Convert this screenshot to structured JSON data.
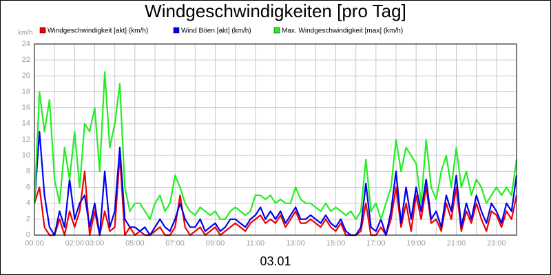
{
  "chart_data": {
    "type": "line",
    "title": "Windgeschwindigkeiten [pro Tag]",
    "y_label": "km/h",
    "x_label": "03.01",
    "x": [
      0,
      0.25,
      0.5,
      0.75,
      1,
      1.25,
      1.5,
      1.75,
      2,
      2.25,
      2.5,
      2.75,
      3,
      3.25,
      3.5,
      3.75,
      4,
      4.25,
      4.5,
      4.75,
      5,
      5.25,
      5.5,
      5.75,
      6,
      6.25,
      6.5,
      6.75,
      7,
      7.25,
      7.5,
      7.75,
      8,
      8.25,
      8.5,
      8.75,
      9,
      9.25,
      9.5,
      9.75,
      10,
      10.25,
      10.5,
      10.75,
      11,
      11.25,
      11.5,
      11.75,
      12,
      12.25,
      12.5,
      12.75,
      13,
      13.25,
      13.5,
      13.75,
      14,
      14.25,
      14.5,
      14.75,
      15,
      15.25,
      15.5,
      15.75,
      16,
      16.25,
      16.5,
      16.75,
      17,
      17.25,
      17.5,
      17.75,
      18,
      18.25,
      18.5,
      18.75,
      19,
      19.25,
      19.5,
      19.75,
      20,
      20.25,
      20.5,
      20.75,
      21,
      21.25,
      21.5,
      21.75,
      22,
      22.25,
      22.5,
      22.75,
      23,
      23.25,
      23.5,
      23.75,
      24
    ],
    "series": [
      {
        "name": "Windgeschwindigkeit [akt] (km/h)",
        "color": "#ee0000",
        "values": [
          4,
          6,
          1,
          0,
          0,
          2,
          0,
          3,
          1,
          3,
          8,
          0,
          3,
          0,
          3,
          0.5,
          1,
          10,
          0,
          1,
          0,
          0.5,
          0,
          0,
          0.5,
          1,
          0,
          0,
          1,
          5,
          1,
          0,
          0.5,
          1,
          0,
          0.5,
          1,
          0,
          0.5,
          1,
          1.5,
          1,
          0.5,
          1.5,
          2,
          2.5,
          1.5,
          2,
          1.5,
          2.5,
          1,
          2,
          3,
          1.5,
          1.5,
          2,
          1.5,
          1,
          2,
          1,
          0.5,
          1.5,
          0,
          0,
          0,
          0.5,
          4,
          0,
          0,
          1,
          0,
          2,
          6,
          1,
          4,
          0.5,
          5,
          2,
          6,
          1.5,
          2,
          0.5,
          4,
          2,
          6,
          0.5,
          3,
          1.5,
          4,
          2,
          0.5,
          3,
          2.5,
          1,
          3,
          2,
          5
        ]
      },
      {
        "name": "Wind Böen [akt] (km/h)",
        "color": "#0000ee",
        "values": [
          4,
          13,
          5,
          1,
          0,
          3,
          1,
          7,
          2,
          4,
          5,
          1,
          4,
          0,
          8,
          1,
          3,
          11,
          2,
          1,
          1,
          0.5,
          1,
          0,
          1,
          2,
          1,
          0.5,
          2,
          4,
          2,
          1,
          1,
          2,
          0.5,
          1,
          1.5,
          0.5,
          1,
          2,
          2,
          1.5,
          1,
          2,
          2.5,
          3.5,
          2,
          3,
          2,
          3,
          1.5,
          2.5,
          3.5,
          2,
          2,
          2.5,
          2,
          1.5,
          2.5,
          1.5,
          1,
          2,
          0.5,
          0,
          0,
          1,
          6.5,
          1,
          0.5,
          2,
          0,
          3,
          8,
          1.5,
          6,
          2,
          6,
          3,
          7,
          2,
          3,
          1,
          5,
          3,
          7.5,
          1,
          4,
          2,
          5,
          3,
          1.5,
          4,
          3,
          1.5,
          4,
          3,
          7.5
        ]
      },
      {
        "name": "Max. Windgeschwindigkeit [max] (km/h)",
        "color": "#22ee22",
        "values": [
          4,
          18,
          13,
          17,
          7,
          4,
          11,
          7,
          13,
          6,
          14,
          13,
          16,
          8,
          20.5,
          11,
          14,
          19,
          6,
          3,
          4,
          4,
          3,
          2,
          4,
          5,
          3,
          4,
          7.5,
          6,
          4,
          3,
          2.5,
          3.5,
          3,
          2.5,
          3,
          2,
          2,
          3,
          3.5,
          3,
          2.5,
          3,
          5,
          5,
          4.5,
          5,
          4,
          4.5,
          4,
          4,
          6,
          4.5,
          4,
          4,
          3.5,
          3,
          4,
          3,
          3.5,
          3,
          2.5,
          3,
          2,
          3,
          9.5,
          3,
          4,
          2,
          4,
          6,
          12,
          8,
          11,
          10,
          9,
          4,
          12,
          6,
          4.5,
          8,
          10,
          6,
          11,
          6,
          8,
          5,
          7,
          6,
          4,
          5,
          6,
          5,
          6,
          5,
          9.5
        ]
      }
    ],
    "xlim": [
      0,
      24
    ],
    "xticks": [
      {
        "value": 0,
        "label": "00:00"
      },
      {
        "value": 1,
        "label": null
      },
      {
        "value": 2,
        "label": "02:00"
      },
      {
        "value": 3,
        "label": "03:00"
      },
      {
        "value": 4,
        "label": null
      },
      {
        "value": 5,
        "label": "05:00"
      },
      {
        "value": 6,
        "label": null
      },
      {
        "value": 7,
        "label": "07:00"
      },
      {
        "value": 8,
        "label": null
      },
      {
        "value": 9,
        "label": "09:00"
      },
      {
        "value": 10,
        "label": null
      },
      {
        "value": 11,
        "label": "11:00"
      },
      {
        "value": 12,
        "label": null
      },
      {
        "value": 13,
        "label": "13:00"
      },
      {
        "value": 14,
        "label": null
      },
      {
        "value": 15,
        "label": "15:00"
      },
      {
        "value": 16,
        "label": null
      },
      {
        "value": 17,
        "label": "17:00"
      },
      {
        "value": 18,
        "label": null
      },
      {
        "value": 19,
        "label": "19:00"
      },
      {
        "value": 20,
        "label": null
      },
      {
        "value": 21,
        "label": "21:00"
      },
      {
        "value": 22,
        "label": null
      },
      {
        "value": 23,
        "label": "23:00"
      },
      {
        "value": 24,
        "label": null
      }
    ],
    "ylim": [
      0,
      24
    ],
    "yticks": [
      0,
      2,
      4,
      6,
      8,
      10,
      12,
      14,
      16,
      18,
      20,
      22,
      24
    ],
    "grid": true
  }
}
